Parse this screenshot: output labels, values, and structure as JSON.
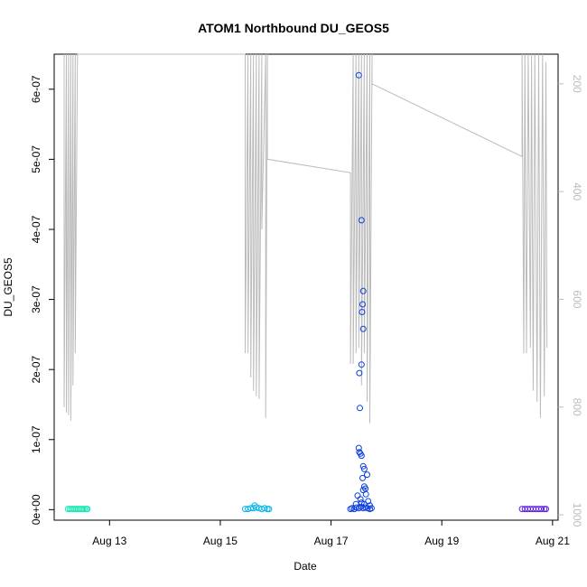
{
  "chart_data": {
    "type": "scatter",
    "title": "ATOM1 Northbound DU_GEOS5",
    "xlabel": "Date",
    "ylabel": "DU_GEOS5",
    "x_ticks": [
      "Aug 13",
      "Aug 15",
      "Aug 17",
      "Aug 19",
      "Aug 21"
    ],
    "x_tick_days": [
      13,
      15,
      17,
      19,
      21
    ],
    "xlim": [
      12.0,
      21.1
    ],
    "ylim": [
      -1.5e-08,
      6.5e-07
    ],
    "y_ticks": [
      0,
      1e-07,
      2e-07,
      3e-07,
      4e-07,
      5e-07,
      6e-07
    ],
    "y_tick_labels": [
      "0e+00",
      "1e-07",
      "2e-07",
      "3e-07",
      "4e-07",
      "5e-07",
      "6e-07"
    ],
    "y2_label": "",
    "y2_ticks": [
      200,
      400,
      600,
      800,
      1000
    ],
    "y2lim": [
      1010,
      145
    ],
    "grid": false,
    "legend": "none",
    "series": [
      {
        "color": "#1de9b6",
        "points": [
          [
            12.25,
            1e-09
          ],
          [
            12.28,
            1e-09
          ],
          [
            12.31,
            1e-09
          ],
          [
            12.34,
            1e-09
          ],
          [
            12.37,
            1e-09
          ],
          [
            12.4,
            1e-09
          ],
          [
            12.43,
            1e-09
          ],
          [
            12.46,
            1e-09
          ],
          [
            12.49,
            1e-09
          ],
          [
            12.52,
            1e-09
          ],
          [
            12.55,
            1e-09
          ],
          [
            12.58,
            1e-09
          ],
          [
            12.6,
            1e-09
          ]
        ]
      },
      {
        "color": "#03b4e8",
        "points": [
          [
            15.45,
            1e-09
          ],
          [
            15.5,
            1e-09
          ],
          [
            15.55,
            2e-09
          ],
          [
            15.6,
            2e-09
          ],
          [
            15.62,
            6e-09
          ],
          [
            15.65,
            3e-09
          ],
          [
            15.7,
            2e-09
          ],
          [
            15.75,
            1e-09
          ],
          [
            15.8,
            2e-09
          ],
          [
            15.85,
            1e-09
          ],
          [
            15.88,
            1e-09
          ]
        ]
      },
      {
        "color": "#0a3ee0",
        "points": [
          [
            17.5,
            6.2e-07
          ],
          [
            17.55,
            4.13e-07
          ],
          [
            17.58,
            3.12e-07
          ],
          [
            17.57,
            2.93e-07
          ],
          [
            17.56,
            2.82e-07
          ],
          [
            17.58,
            2.58e-07
          ],
          [
            17.55,
            2.07e-07
          ],
          [
            17.51,
            1.95e-07
          ],
          [
            17.52,
            1.45e-07
          ],
          [
            17.5,
            8.8e-08
          ],
          [
            17.51,
            8.2e-08
          ],
          [
            17.53,
            8e-08
          ],
          [
            17.55,
            7.7e-08
          ],
          [
            17.58,
            6.2e-08
          ],
          [
            17.6,
            5.8e-08
          ],
          [
            17.65,
            5e-08
          ],
          [
            17.57,
            4.5e-08
          ],
          [
            17.6,
            3.3e-08
          ],
          [
            17.62,
            3e-08
          ],
          [
            17.58,
            2.8e-08
          ],
          [
            17.63,
            2.2e-08
          ],
          [
            17.48,
            2e-08
          ],
          [
            17.53,
            1.5e-08
          ],
          [
            17.67,
            1.2e-08
          ],
          [
            17.45,
            8e-09
          ],
          [
            17.55,
            1e-08
          ],
          [
            17.6,
            8e-09
          ],
          [
            17.7,
            6e-09
          ],
          [
            17.35,
            1e-09
          ],
          [
            17.38,
            2e-09
          ],
          [
            17.42,
            1e-09
          ],
          [
            17.46,
            3e-09
          ],
          [
            17.5,
            2e-09
          ],
          [
            17.54,
            4e-09
          ],
          [
            17.58,
            2e-09
          ],
          [
            17.62,
            3e-09
          ],
          [
            17.66,
            2e-09
          ],
          [
            17.7,
            1e-09
          ],
          [
            17.73,
            2e-09
          ]
        ]
      },
      {
        "color": "#5b1ee6",
        "points": [
          [
            20.45,
            1e-09
          ],
          [
            20.5,
            1e-09
          ],
          [
            20.55,
            1e-09
          ],
          [
            20.6,
            1e-09
          ],
          [
            20.65,
            1e-09
          ],
          [
            20.7,
            1e-09
          ],
          [
            20.75,
            1e-09
          ],
          [
            20.8,
            1e-09
          ],
          [
            20.85,
            1e-09
          ],
          [
            20.88,
            1e-09
          ]
        ]
      }
    ],
    "pressure_track": {
      "color": "#bbbbbb",
      "points": [
        [
          12.18,
          145
        ],
        [
          12.18,
          800
        ],
        [
          12.22,
          145
        ],
        [
          12.22,
          810
        ],
        [
          12.26,
          145
        ],
        [
          12.26,
          815
        ],
        [
          12.3,
          145
        ],
        [
          12.3,
          825
        ],
        [
          12.34,
          145
        ],
        [
          12.34,
          760
        ],
        [
          12.38,
          145
        ],
        [
          12.38,
          700
        ],
        [
          12.42,
          145
        ],
        [
          15.45,
          145
        ],
        [
          15.45,
          700
        ],
        [
          15.5,
          145
        ],
        [
          15.5,
          700
        ],
        [
          15.55,
          145
        ],
        [
          15.55,
          745
        ],
        [
          15.6,
          145
        ],
        [
          15.6,
          770
        ],
        [
          15.65,
          145
        ],
        [
          15.65,
          780
        ],
        [
          15.7,
          145
        ],
        [
          15.7,
          785
        ],
        [
          15.75,
          145
        ],
        [
          15.75,
          470
        ],
        [
          15.82,
          145
        ],
        [
          15.82,
          820
        ],
        [
          15.85,
          145
        ],
        [
          15.85,
          340
        ],
        [
          17.35,
          365
        ],
        [
          17.35,
          720
        ],
        [
          17.4,
          145
        ],
        [
          17.4,
          720
        ],
        [
          17.45,
          145
        ],
        [
          17.45,
          700
        ],
        [
          17.5,
          145
        ],
        [
          17.5,
          690
        ],
        [
          17.55,
          145
        ],
        [
          17.55,
          760
        ],
        [
          17.6,
          145
        ],
        [
          17.6,
          700
        ],
        [
          17.65,
          145
        ],
        [
          17.65,
          790
        ],
        [
          17.7,
          145
        ],
        [
          17.7,
          830
        ],
        [
          17.74,
          145
        ],
        [
          17.74,
          200
        ],
        [
          20.45,
          335
        ],
        [
          20.45,
          145
        ],
        [
          20.48,
          700
        ],
        [
          20.5,
          145
        ],
        [
          20.53,
          700
        ],
        [
          20.56,
          145
        ],
        [
          20.6,
          690
        ],
        [
          20.62,
          145
        ],
        [
          20.65,
          770
        ],
        [
          20.68,
          145
        ],
        [
          20.72,
          790
        ],
        [
          20.75,
          145
        ],
        [
          20.78,
          820
        ],
        [
          20.82,
          145
        ],
        [
          20.85,
          780
        ],
        [
          20.88,
          160
        ],
        [
          20.9,
          690
        ]
      ]
    }
  }
}
